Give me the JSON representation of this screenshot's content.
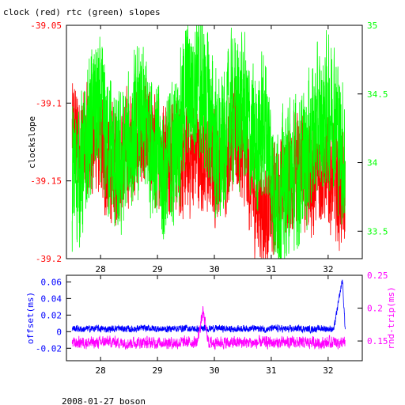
{
  "title": "clock (red) rtc (green) slopes",
  "footer": "2008-01-27 boson",
  "colors": {
    "frame": "#000000",
    "clock": "#ff0000",
    "rtc": "#00ff00",
    "offset": "#0000ff",
    "rndtrip": "#ff00ff"
  },
  "chart_data": [
    {
      "type": "line",
      "title": "clock (red) rtc (green) slopes",
      "xlabel": "",
      "xlim": [
        27.4,
        32.6
      ],
      "x_ticks": [
        28,
        29,
        30,
        31,
        32
      ],
      "x_tick_labels": [
        "28",
        "29",
        "30",
        "31",
        "32"
      ],
      "left_axis": {
        "label": "clockslope",
        "lim": [
          -39.2,
          -39.05
        ],
        "ticks": [
          -39.05,
          -39.1,
          -39.15,
          -39.2
        ],
        "tick_labels": [
          "-39.05",
          "-39.1",
          "-39.15",
          "-39.2"
        ],
        "color": "#ff0000"
      },
      "right_axis": {
        "label": "",
        "lim": [
          33.3,
          35.0
        ],
        "ticks": [
          33.5,
          34,
          34.5,
          35
        ],
        "tick_labels": [
          "33.5",
          "34",
          "34.5",
          "35"
        ],
        "color": "#00ff00"
      },
      "series": [
        {
          "name": "clock",
          "axis": "left",
          "color": "#ff0000",
          "x": [
            27.5,
            27.7,
            27.9,
            28.1,
            28.3,
            28.5,
            28.7,
            28.9,
            29.1,
            29.3,
            29.5,
            29.7,
            29.9,
            30.1,
            30.3,
            30.5,
            30.7,
            30.9,
            31.1,
            31.3,
            31.5,
            31.7,
            31.9,
            32.1,
            32.3
          ],
          "y": [
            -39.12,
            -39.13,
            -39.12,
            -39.14,
            -39.14,
            -39.13,
            -39.12,
            -39.13,
            -39.13,
            -39.13,
            -39.14,
            -39.13,
            -39.14,
            -39.14,
            -39.12,
            -39.13,
            -39.16,
            -39.17,
            -39.16,
            -39.15,
            -39.14,
            -39.15,
            -39.14,
            -39.15,
            -39.16
          ]
        },
        {
          "name": "rtc",
          "axis": "right",
          "color": "#00ff00",
          "x": [
            27.5,
            27.7,
            27.9,
            28.1,
            28.3,
            28.5,
            28.7,
            28.9,
            29.1,
            29.3,
            29.5,
            29.7,
            29.9,
            30.1,
            30.3,
            30.5,
            30.7,
            30.9,
            31.1,
            31.3,
            31.5,
            31.7,
            31.9,
            32.1,
            32.3
          ],
          "y": [
            33.9,
            34.0,
            34.4,
            34.2,
            33.9,
            34.1,
            34.3,
            34.2,
            33.9,
            34.1,
            34.5,
            34.6,
            34.4,
            34.0,
            34.4,
            34.4,
            34.1,
            34.3,
            33.7,
            33.9,
            33.9,
            34.2,
            34.3,
            34.4,
            34.0
          ]
        }
      ]
    },
    {
      "type": "line",
      "title": "",
      "xlabel": "",
      "xlim": [
        27.4,
        32.6
      ],
      "x_ticks": [
        28,
        29,
        30,
        31,
        32
      ],
      "x_tick_labels": [
        "28",
        "29",
        "30",
        "31",
        "32"
      ],
      "left_axis": {
        "label": "offset(ms)",
        "lim": [
          -0.035,
          0.068
        ],
        "ticks": [
          0.06,
          0.04,
          0.02,
          0,
          -0.02
        ],
        "tick_labels": [
          "0.06",
          "0.04",
          "0.02",
          "0",
          "-0.02"
        ],
        "color": "#0000ff"
      },
      "right_axis": {
        "label": "rnd-trip(ms)",
        "lim": [
          0.12,
          0.25
        ],
        "ticks": [
          0.25,
          0.2,
          0.15
        ],
        "tick_labels": [
          "0.25",
          "0.2",
          "0.15"
        ],
        "color": "#ff00ff"
      },
      "series": [
        {
          "name": "offset",
          "axis": "left",
          "color": "#0000ff",
          "x": [
            27.5,
            27.7,
            27.9,
            28.1,
            28.3,
            28.5,
            28.7,
            28.9,
            29.1,
            29.3,
            29.5,
            29.7,
            29.9,
            30.1,
            30.3,
            30.5,
            30.7,
            30.9,
            31.1,
            31.3,
            31.5,
            31.7,
            31.9,
            32.1,
            32.25,
            32.3
          ],
          "y": [
            0.004,
            0.003,
            0.004,
            0.003,
            0.004,
            0.003,
            0.004,
            0.004,
            0.003,
            0.004,
            0.004,
            0.003,
            0.004,
            0.004,
            0.003,
            0.004,
            0.004,
            0.003,
            0.004,
            0.003,
            0.004,
            0.003,
            0.004,
            0.003,
            0.063,
            0.003
          ]
        },
        {
          "name": "rnd-trip",
          "axis": "right",
          "color": "#ff00ff",
          "x": [
            27.5,
            27.7,
            27.9,
            28.1,
            28.3,
            28.5,
            28.7,
            28.9,
            29.1,
            29.3,
            29.5,
            29.7,
            29.8,
            29.9,
            30.1,
            30.3,
            30.5,
            30.7,
            30.9,
            31.1,
            31.3,
            31.5,
            31.7,
            31.9,
            32.1,
            32.3
          ],
          "y": [
            0.147,
            0.148,
            0.147,
            0.149,
            0.148,
            0.147,
            0.148,
            0.147,
            0.148,
            0.147,
            0.148,
            0.148,
            0.195,
            0.147,
            0.148,
            0.147,
            0.148,
            0.147,
            0.148,
            0.147,
            0.148,
            0.147,
            0.148,
            0.147,
            0.148,
            0.147
          ]
        }
      ]
    }
  ]
}
